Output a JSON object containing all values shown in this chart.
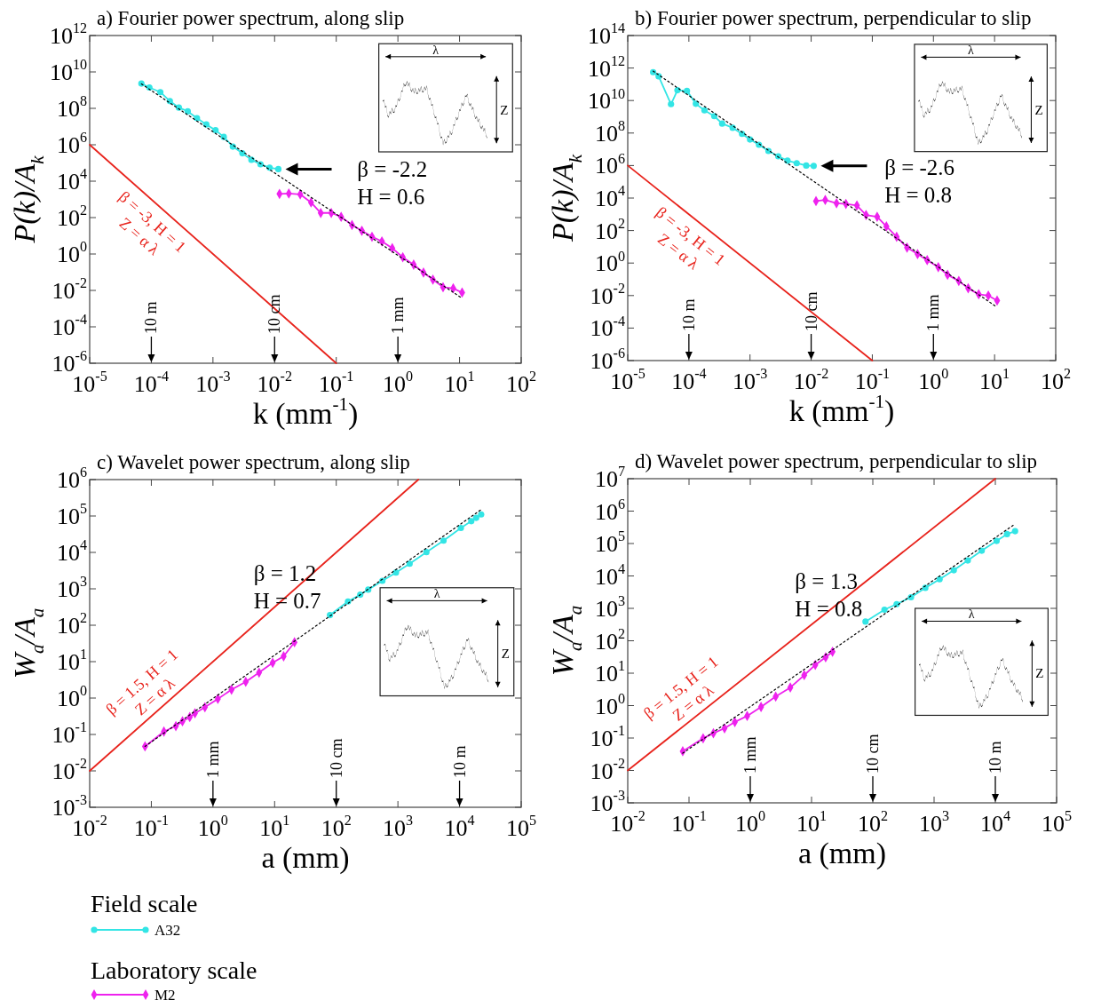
{
  "chart_data": [
    {
      "type": "line",
      "title": "a) Fourier power spectrum, along slip",
      "xlabel": "k (mm$^{-1}$)",
      "ylabel": "P(k)/A$_{k}$",
      "log": "xy",
      "xlim": [
        1e-05,
        100
      ],
      "ylim": [
        1e-06,
        1000000000000.0
      ],
      "xticks": [
        {
          "value": 1e-05,
          "label": "10$^{-5}$"
        },
        {
          "value": 0.0001,
          "label": "10$^{-4}$"
        },
        {
          "value": 0.001,
          "label": "10$^{-3}$"
        },
        {
          "value": 0.01,
          "label": "10$^{-2}$"
        },
        {
          "value": 0.1,
          "label": "10$^{-1}$"
        },
        {
          "value": 1,
          "label": "10$^{0}$"
        },
        {
          "value": 10,
          "label": "10$^{1}$"
        },
        {
          "value": 100,
          "label": "10$^{2}$"
        }
      ],
      "yticks": [
        {
          "value": 1e-06,
          "label": "10$^{-6}$"
        },
        {
          "value": 0.0001,
          "label": "10$^{-4}$"
        },
        {
          "value": 0.01,
          "label": "10$^{-2}$"
        },
        {
          "value": 1,
          "label": "10$^{0}$"
        },
        {
          "value": 100,
          "label": "10$^{2}$"
        },
        {
          "value": 10000.0,
          "label": "10$^{4}$"
        },
        {
          "value": 1000000.0,
          "label": "10$^{6}$"
        },
        {
          "value": 100000000.0,
          "label": "10$^{8}$"
        },
        {
          "value": 10000000000.0,
          "label": "10$^{10}$"
        },
        {
          "value": 1000000000000.0,
          "label": "10$^{12}$"
        }
      ],
      "series": [
        {
          "name": "β = -3, H = 1\nZ = α λ",
          "color": "#e8231c",
          "marker": "none",
          "x": [
            1e-05,
            0.1
          ],
          "values": [
            1000000.0,
            1e-06
          ]
        },
        {
          "color": "#33e5e5",
          "marker": "circle",
          "x": [
            6.9e-05,
            9.3e-05,
            0.00014,
            0.0002,
            0.00028,
            0.00039,
            0.00055,
            0.00078,
            0.0011,
            0.0015,
            0.0021,
            0.003,
            0.0042,
            0.0059,
            0.0083,
            0.0115
          ],
          "values": [
            2300000000.0,
            1400000000.0,
            780000000.0,
            250000000.0,
            110000000.0,
            68000000.0,
            29000000.0,
            13000000.0,
            6300000.0,
            2700000.0,
            790000.0,
            340000.0,
            150000.0,
            85000.0,
            55000.0,
            46000.0
          ]
        },
        {
          "color": "#ee22ee",
          "marker": "diamond",
          "x": [
            0.012,
            0.017,
            0.026,
            0.039,
            0.056,
            0.083,
            0.12,
            0.18,
            0.26,
            0.38,
            0.55,
            0.81,
            1.2,
            1.8,
            2.6,
            3.7,
            5.4,
            7.9,
            11
          ],
          "values": [
            2000,
            2100,
            1900,
            680,
            180,
            180,
            110,
            39,
            19,
            8.9,
            4.9,
            2.1,
            0.66,
            0.26,
            0.095,
            0.039,
            0.015,
            0.013,
            0.0076
          ]
        },
        {
          "name": "β = -2.2\nH = 0.6",
          "color": "#000000",
          "marker": "none",
          "line_style": "dotted",
          "x": [
            6.9e-05,
            11
          ],
          "values": [
            2200000000.0,
            0.0037
          ]
        }
      ],
      "annotations": [
        "λ",
        "Z",
        "10 m",
        "10 cm",
        "1 mm"
      ]
    },
    {
      "type": "line",
      "title": "b) Fourier power spectrum, perpendicular to slip",
      "xlabel": "k (mm$^{-1}$)",
      "ylabel": "P(k)/A$_{k}$",
      "log": "xy",
      "xlim": [
        1e-05,
        100
      ],
      "ylim": [
        1e-06,
        100000000000000.0
      ],
      "xticks": [
        {
          "value": 1e-05,
          "label": "10$^{-5}$"
        },
        {
          "value": 0.0001,
          "label": "10$^{-4}$"
        },
        {
          "value": 0.001,
          "label": "10$^{-3}$"
        },
        {
          "value": 0.01,
          "label": "10$^{-2}$"
        },
        {
          "value": 0.1,
          "label": "10$^{-1}$"
        },
        {
          "value": 1,
          "label": "10$^{0}$"
        },
        {
          "value": 10,
          "label": "10$^{1}$"
        },
        {
          "value": 100,
          "label": "10$^{2}$"
        }
      ],
      "yticks": [
        {
          "value": 1e-06,
          "label": "10$^{-6}$"
        },
        {
          "value": 0.0001,
          "label": "10$^{-4}$"
        },
        {
          "value": 0.01,
          "label": "10$^{-2}$"
        },
        {
          "value": 1,
          "label": "10$^{0}$"
        },
        {
          "value": 100,
          "label": "10$^{2}$"
        },
        {
          "value": 10000.0,
          "label": "10$^{4}$"
        },
        {
          "value": 1000000.0,
          "label": "10$^{6}$"
        },
        {
          "value": 100000000.0,
          "label": "10$^{8}$"
        },
        {
          "value": 10000000000.0,
          "label": "10$^{10}$"
        },
        {
          "value": 1000000000000.0,
          "label": "10$^{12}$"
        },
        {
          "value": 100000000000000.0,
          "label": "10$^{14}$"
        }
      ],
      "series": [
        {
          "name": "β = -3, H = 1\nZ = α λ",
          "color": "#e8231c",
          "marker": "none",
          "x": [
            1e-05,
            0.1
          ],
          "values": [
            1000000.0,
            1e-06
          ]
        },
        {
          "color": "#33e5e5",
          "marker": "circle",
          "x": [
            2.6e-05,
            3.2e-05,
            5.1e-05,
            6.5e-05,
            9.3e-05,
            0.00013,
            0.00018,
            0.00026,
            0.00035,
            0.00052,
            0.00074,
            0.001,
            0.0014,
            0.002,
            0.0029,
            0.0041,
            0.0058,
            0.0083,
            0.011
          ],
          "values": [
            560000000000.0,
            310000000000.0,
            6000000000.0,
            43000000000.0,
            39000000000.0,
            6300000000.0,
            2500000000.0,
            1100000000.0,
            380000000.0,
            210000000.0,
            89000000.0,
            40000000.0,
            19000000.0,
            7900000.0,
            3700000.0,
            2000000.0,
            1400000.0,
            1000000.0,
            950000.0
          ]
        },
        {
          "color": "#ee22ee",
          "marker": "diamond",
          "x": [
            0.012,
            0.017,
            0.026,
            0.037,
            0.056,
            0.079,
            0.12,
            0.17,
            0.25,
            0.37,
            0.55,
            0.79,
            1.2,
            1.7,
            2.6,
            3.7,
            5.5,
            7.9,
            11
          ],
          "values": [
            6500,
            7600,
            4800,
            4400,
            3500,
            910,
            710,
            180,
            41,
            8.9,
            3.6,
            1.5,
            0.56,
            0.19,
            0.079,
            0.028,
            0.012,
            0.01,
            0.0049
          ]
        },
        {
          "name": "β = -2.6\nH = 0.8",
          "color": "#000000",
          "marker": "none",
          "line_style": "dotted",
          "x": [
            2.6e-05,
            11
          ],
          "values": [
            650000000000.0,
            0.0019
          ]
        }
      ],
      "annotations": [
        "λ",
        "Z",
        "10 m",
        "10 cm",
        "1 mm"
      ]
    },
    {
      "type": "line",
      "title": "c) Wavelet power spectrum, along slip",
      "xlabel": "a (mm)",
      "ylabel": "W$_{a}$/A$_{a}$",
      "log": "xy",
      "xlim": [
        0.01,
        100000.0
      ],
      "ylim": [
        0.001,
        1000000.0
      ],
      "legend": "bottom left",
      "xticks": [
        {
          "value": 0.01,
          "label": "10$^{-2}$"
        },
        {
          "value": 0.1,
          "label": "10$^{-1}$"
        },
        {
          "value": 1,
          "label": "10$^{0}$"
        },
        {
          "value": 10,
          "label": "10$^{1}$"
        },
        {
          "value": 100,
          "label": "10$^{2}$"
        },
        {
          "value": 1000,
          "label": "10$^{3}$"
        },
        {
          "value": 10000.0,
          "label": "10$^{4}$"
        },
        {
          "value": 100000.0,
          "label": "10$^{5}$"
        }
      ],
      "yticks": [
        {
          "value": 0.001,
          "label": "10$^{-3}$"
        },
        {
          "value": 0.01,
          "label": "10$^{-2}$"
        },
        {
          "value": 0.1,
          "label": "10$^{-1}$"
        },
        {
          "value": 1,
          "label": "10$^{0}$"
        },
        {
          "value": 10,
          "label": "10$^{1}$"
        },
        {
          "value": 100,
          "label": "10$^{2}$"
        },
        {
          "value": 1000,
          "label": "10$^{3}$"
        },
        {
          "value": 10000.0,
          "label": "10$^{4}$"
        },
        {
          "value": 100000.0,
          "label": "10$^{5}$"
        },
        {
          "value": 1000000.0,
          "label": "10$^{6}$"
        }
      ],
      "series": [
        {
          "name": "β = 1.5, H = 1\nZ = α λ",
          "color": "#e8231c",
          "marker": "none",
          "x": [
            0.01,
            2150
          ],
          "values": [
            0.01,
            1000000.0
          ]
        },
        {
          "name": "A32",
          "color": "#33e5e5",
          "marker": "circle",
          "x": [
            79,
            155,
            245,
            330,
            560,
            930,
            1550,
            2900,
            5500,
            10500,
            15500,
            18600,
            22400
          ],
          "values": [
            190,
            450,
            690,
            950,
            1660,
            2800,
            4900,
            10200,
            21000,
            47000,
            72000,
            89000,
            110000
          ]
        },
        {
          "name": "M2",
          "color": "#ee22ee",
          "marker": "diamond",
          "x": [
            0.079,
            0.16,
            0.25,
            0.32,
            0.42,
            0.51,
            0.74,
            1.2,
            2.0,
            3.4,
            5.6,
            9.3,
            14,
            21
          ],
          "values": [
            0.047,
            0.12,
            0.17,
            0.23,
            0.3,
            0.38,
            0.56,
            0.95,
            1.7,
            2.8,
            5.0,
            9.3,
            14,
            34
          ]
        },
        {
          "name": "β = 1.2\nH = 0.7",
          "color": "#000000",
          "marker": "none",
          "line_style": "dotted",
          "x": [
            0.079,
            22400
          ],
          "values": [
            0.047,
            150000
          ]
        }
      ],
      "annotations": [
        "λ",
        "Z",
        "1 mm",
        "10 cm",
        "10 m"
      ]
    },
    {
      "type": "line",
      "title": "d) Wavelet power spectrum, perpendicular to slip",
      "xlabel": "a (mm)",
      "ylabel": "W$_{a}$/A$_{a}$",
      "log": "xy",
      "xlim": [
        0.01,
        100000.0
      ],
      "ylim": [
        0.001,
        10000000.0
      ],
      "xticks": [
        {
          "value": 0.01,
          "label": "10$^{-2}$"
        },
        {
          "value": 0.1,
          "label": "10$^{-1}$"
        },
        {
          "value": 1,
          "label": "10$^{0}$"
        },
        {
          "value": 10,
          "label": "10$^{1}$"
        },
        {
          "value": 100,
          "label": "10$^{2}$"
        },
        {
          "value": 1000,
          "label": "10$^{3}$"
        },
        {
          "value": 10000.0,
          "label": "10$^{4}$"
        },
        {
          "value": 100000.0,
          "label": "10$^{5}$"
        }
      ],
      "yticks": [
        {
          "value": 0.001,
          "label": "10$^{-3}$"
        },
        {
          "value": 0.01,
          "label": "10$^{-2}$"
        },
        {
          "value": 0.1,
          "label": "10$^{-1}$"
        },
        {
          "value": 1,
          "label": "10$^{0}$"
        },
        {
          "value": 10,
          "label": "10$^{1}$"
        },
        {
          "value": 100,
          "label": "10$^{2}$"
        },
        {
          "value": 1000,
          "label": "10$^{3}$"
        },
        {
          "value": 10000.0,
          "label": "10$^{4}$"
        },
        {
          "value": 100000.0,
          "label": "10$^{5}$"
        },
        {
          "value": 1000000.0,
          "label": "10$^{6}$"
        },
        {
          "value": 10000000.0,
          "label": "10$^{7}$"
        }
      ],
      "series": [
        {
          "name": "β = 1.5, H = 1\nZ = α λ",
          "color": "#e8231c",
          "marker": "none",
          "x": [
            0.01,
            10000.0
          ],
          "values": [
            0.01,
            10000000.0
          ]
        },
        {
          "color": "#33e5e5",
          "marker": "circle",
          "x": [
            76,
            155,
            245,
            420,
            720,
            1230,
            2100,
            3550,
            6000,
            10500,
            15500,
            21000
          ],
          "values": [
            390,
            910,
            1350,
            2200,
            4300,
            7900,
            15000,
            30000,
            60000,
            120000,
            195000,
            240000
          ]
        },
        {
          "color": "#ee22ee",
          "marker": "diamond",
          "x": [
            0.079,
            0.17,
            0.25,
            0.38,
            0.56,
            0.89,
            1.5,
            2.6,
            4.5,
            7.6,
            11.5,
            17,
            22
          ],
          "values": [
            0.039,
            0.098,
            0.14,
            0.2,
            0.31,
            0.48,
            0.91,
            1.9,
            3.6,
            8.7,
            18,
            31,
            46
          ]
        },
        {
          "name": "β = 1.3\nH = 0.8",
          "color": "#000000",
          "marker": "none",
          "line_style": "dotted",
          "x": [
            0.079,
            21000
          ],
          "values": [
            0.034,
            400000
          ]
        }
      ],
      "annotations": [
        "λ",
        "Z",
        "1 mm",
        "10 cm",
        "10 m"
      ]
    },
    {
      "type": "other",
      "annotations": [
        "Field scale",
        "Laboratory scale"
      ]
    }
  ]
}
